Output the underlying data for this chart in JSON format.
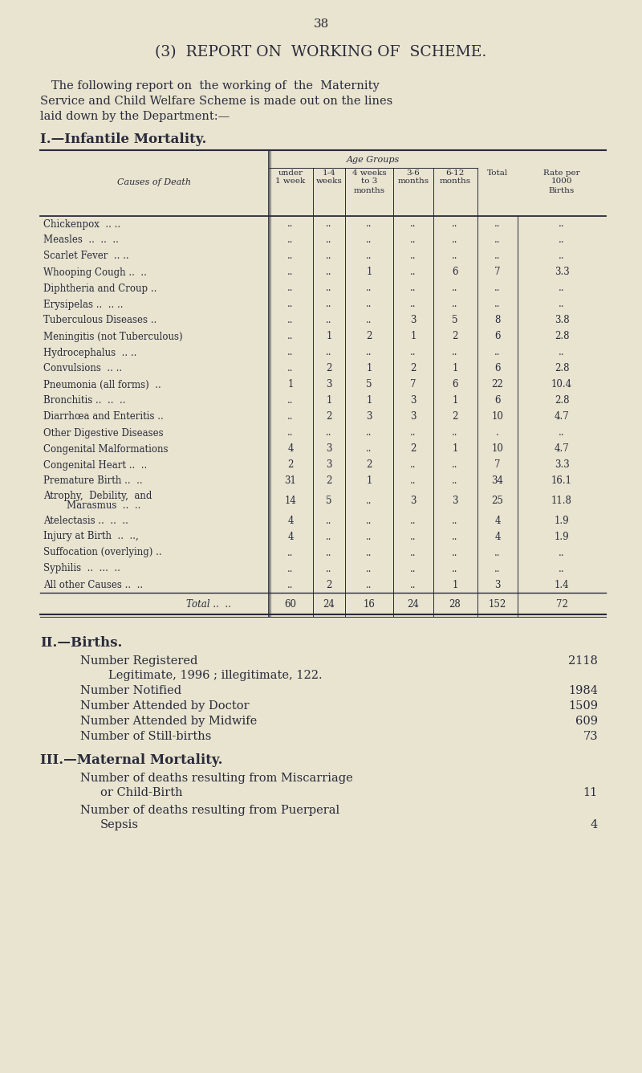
{
  "bg_color": "#e8e4d0",
  "text_color": "#2a2a3a",
  "page_number": "38",
  "title": "(3)  REPORT ON  WORKING OF  SCHEME.",
  "intro_lines": [
    "   The following report on  the working of  the  Maternity",
    "Service and Child Welfare Scheme is made out on the lines",
    "laid down by the Department:—"
  ],
  "section1_title": "I.—Infantile Mortality.",
  "table_header_age": "Age Groups",
  "table_col_cause": "Causes of Death",
  "table_cols": [
    "under\n1 week",
    "1-4\nweeks",
    "4 weeks\nto 3\nmonths",
    "3-6\nmonths",
    "6-12\nmonths",
    "Total",
    "Rate per\n1000\nBirths"
  ],
  "table_rows": [
    [
      "Chickenpox  .. ..",
      "..",
      "..",
      "..",
      "..",
      "..",
      "..",
      ".."
    ],
    [
      "Measles  ..  ..  ..",
      "..",
      "..",
      "..",
      "..",
      "..",
      "..",
      ".."
    ],
    [
      "Scarlet Fever  .. ..",
      "..",
      "..",
      "..",
      "..",
      "..",
      "..",
      ".."
    ],
    [
      "Whooping Cough ..  ..",
      "..",
      "..",
      "1",
      "..",
      "6",
      "7",
      "3.3"
    ],
    [
      "Diphtheria and Croup ..",
      "..",
      "..",
      "..",
      "..",
      "..",
      "..",
      ".."
    ],
    [
      "Erysipelas ..  .. ..",
      "..",
      "..",
      "..",
      "..",
      "..",
      "..",
      ".."
    ],
    [
      "Tuberculous Diseases ..",
      "..",
      "..",
      "..",
      "3",
      "5",
      "8",
      "3.8"
    ],
    [
      "Meningitis (not Tuberculous)",
      "..",
      "1",
      "2",
      "1",
      "2",
      "6",
      "2.8"
    ],
    [
      "Hydrocephalus  .. ..",
      "..",
      "..",
      "..",
      "..",
      "..",
      "..",
      ".."
    ],
    [
      "Convulsions  .. ..",
      "..",
      "2",
      "1",
      "2",
      "1",
      "6",
      "2.8"
    ],
    [
      "Pneumonia (all forms)  ..",
      "1",
      "3",
      "5",
      "7",
      "6",
      "22",
      "10.4"
    ],
    [
      "Bronchitis ..  ..  ..",
      "..",
      "1",
      "1",
      "3",
      "1",
      "6",
      "2.8"
    ],
    [
      "Diarrhœa and Enteritis ..",
      "..",
      "2",
      "3",
      "3",
      "2",
      "10",
      "4.7"
    ],
    [
      "Other Digestive Diseases",
      "..",
      "..",
      "..",
      "..",
      "..",
      ".",
      ".."
    ],
    [
      "Congenital Malformations",
      "4",
      "3",
      "..",
      "2",
      "1",
      "10",
      "4.7"
    ],
    [
      "Congenital Heart ..  ..",
      "2",
      "3",
      "2",
      "..",
      "..",
      "7",
      "3.3"
    ],
    [
      "Premature Birth ..  ..",
      "31",
      "2",
      "1",
      "..",
      "..",
      "34",
      "16.1"
    ],
    [
      "Atrophy,  Debility,  and|    Marasmus  ..  ..",
      "14",
      "5",
      "..",
      "3",
      "3",
      "25",
      "11.8"
    ],
    [
      "Atelectasis ..  ..  ..",
      "4",
      "..",
      "..",
      "..",
      "..",
      "4",
      "1.9"
    ],
    [
      "Injury at Birth  ..  ..,",
      "4",
      "..",
      "..",
      "..",
      "..",
      "4",
      "1.9"
    ],
    [
      "Suffocation (overlying) ..",
      "..",
      "..",
      "..",
      "..",
      "..",
      "..",
      ".."
    ],
    [
      "Syphilis  ..  ...  ..",
      "..",
      "..",
      "..",
      "..",
      "..",
      "..",
      ".."
    ],
    [
      "All other Causes ..  ..",
      "..",
      "2",
      "..",
      "..",
      "1",
      "3",
      "1.4"
    ]
  ],
  "table_total": [
    "Total ..  ..",
    "60",
    "24",
    "16",
    "24",
    "28",
    "152",
    "72"
  ],
  "section2_title": "II.—Births.",
  "section3_title": "III.—Maternal Mortality."
}
